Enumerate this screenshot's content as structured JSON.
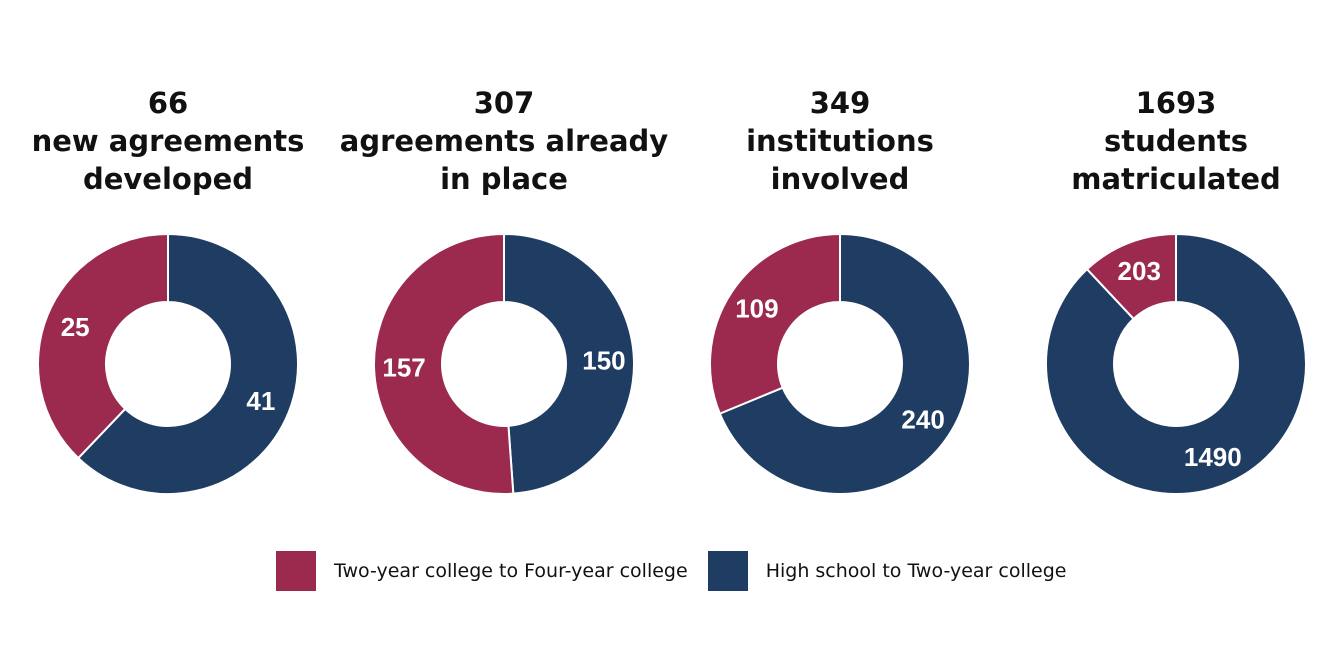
{
  "colors": {
    "two_year_to_four_year": "#9B2A4E",
    "high_school_to_two_year": "#1F3D62"
  },
  "legend": [
    {
      "label": "Two-year college to Four-year college",
      "color": "#9B2A4E"
    },
    {
      "label": "High school to Two-year college",
      "color": "#1F3D62"
    }
  ],
  "chart_data": [
    {
      "type": "pie",
      "title": [
        "66",
        "new agreements",
        "developed"
      ],
      "series": [
        {
          "name": "Two-year college to Four-year college",
          "value": 25
        },
        {
          "name": "High school to Two-year college",
          "value": 41
        }
      ]
    },
    {
      "type": "pie",
      "title": [
        "307",
        "agreements already",
        "in place"
      ],
      "series": [
        {
          "name": "Two-year college to Four-year college",
          "value": 157
        },
        {
          "name": "High school to Two-year college",
          "value": 150
        }
      ]
    },
    {
      "type": "pie",
      "title": [
        "349",
        "institutions",
        "involved"
      ],
      "series": [
        {
          "name": "Two-year college to Four-year college",
          "value": 109
        },
        {
          "name": "High school to Two-year college",
          "value": 240
        }
      ]
    },
    {
      "type": "pie",
      "title": [
        "1693",
        "students",
        "matriculated"
      ],
      "series": [
        {
          "name": "Two-year college to Four-year college",
          "value": 203
        },
        {
          "name": "High school to Two-year college",
          "value": 1490
        }
      ]
    }
  ]
}
